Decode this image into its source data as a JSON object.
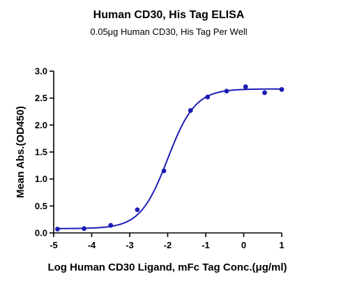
{
  "chart_data": {
    "type": "scatter",
    "title": "Human CD30, His Tag ELISA",
    "subtitle": "0.05μg Human CD30, His Tag Per Well",
    "xlabel": "Log Human CD30 Ligand, mFc Tag Conc.(μg/ml)",
    "ylabel": "Mean Abs.(OD450)",
    "xlim": [
      -5,
      1
    ],
    "ylim": [
      0,
      3.0
    ],
    "x_ticks": [
      -5,
      -4,
      -3,
      -2,
      -1,
      0,
      1
    ],
    "y_ticks": [
      0.0,
      0.5,
      1.0,
      1.5,
      2.0,
      2.5,
      3.0
    ],
    "x_tick_labels": [
      "-5",
      "-4",
      "-3",
      "-2",
      "-1",
      "0",
      "1"
    ],
    "y_tick_labels": [
      "0.0",
      "0.5",
      "1.0",
      "1.5",
      "2.0",
      "2.5",
      "3.0"
    ],
    "grid": false,
    "series": [
      {
        "points": [
          {
            "x": -4.9,
            "y": 0.07
          },
          {
            "x": -4.2,
            "y": 0.08
          },
          {
            "x": -3.5,
            "y": 0.14
          },
          {
            "x": -2.8,
            "y": 0.43
          },
          {
            "x": -2.1,
            "y": 1.15
          },
          {
            "x": -1.4,
            "y": 2.27
          },
          {
            "x": -0.95,
            "y": 2.52
          },
          {
            "x": -0.45,
            "y": 2.63
          },
          {
            "x": 0.05,
            "y": 2.71
          },
          {
            "x": 0.55,
            "y": 2.6
          },
          {
            "x": 1.0,
            "y": 2.66
          }
        ],
        "fit": {
          "model": "4PL",
          "bottom": 0.08,
          "top": 2.67,
          "logEC50": -2.0,
          "hill": 1.2
        },
        "color": "#1c1cb4"
      }
    ]
  }
}
